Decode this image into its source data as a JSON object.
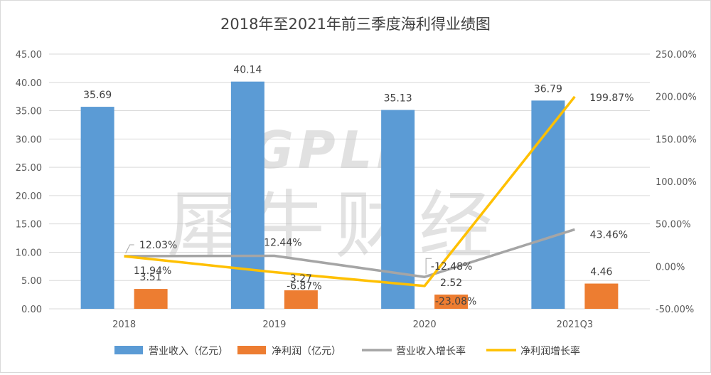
{
  "chart_data": {
    "type": "bar+line",
    "title": "2018年至2021年前三季度海利得业绩图",
    "categories": [
      "2018",
      "2019",
      "2020",
      "2021Q3"
    ],
    "y_left": {
      "ticks": [
        "0.00",
        "5.00",
        "10.00",
        "15.00",
        "20.00",
        "25.00",
        "30.00",
        "35.00",
        "40.00",
        "45.00"
      ],
      "range": [
        0,
        45
      ]
    },
    "y_right": {
      "ticks": [
        "-50.00%",
        "0.00%",
        "50.00%",
        "100.00%",
        "150.00%",
        "200.00%",
        "250.00%"
      ],
      "range": [
        -50,
        250
      ]
    },
    "grid": "horizontal",
    "legend_position": "bottom",
    "series": [
      {
        "name": "营业收入（亿元）",
        "kind": "bar",
        "axis": "left",
        "color": "#5b9bd5",
        "values": [
          35.69,
          40.14,
          35.13,
          36.79
        ],
        "labels": [
          "35.69",
          "40.14",
          "35.13",
          "36.79"
        ]
      },
      {
        "name": "净利润（亿元）",
        "kind": "bar",
        "axis": "left",
        "color": "#ed7d31",
        "values": [
          3.51,
          3.27,
          2.52,
          4.46
        ],
        "labels": [
          "3.51",
          "3.27",
          "2.52",
          "4.46"
        ]
      },
      {
        "name": "营业收入增长率",
        "kind": "line",
        "axis": "right",
        "color": "#a5a5a5",
        "values": [
          12.03,
          12.44,
          -12.48,
          43.46
        ],
        "labels": [
          "12.03%",
          "12.44%",
          "-12.48%",
          "43.46%"
        ]
      },
      {
        "name": "净利润增长率",
        "kind": "line",
        "axis": "right",
        "color": "#ffc000",
        "values": [
          11.94,
          -6.87,
          -23.08,
          199.87
        ],
        "labels": [
          "11.94%",
          "-6.87%",
          "-23.08%",
          "199.87%"
        ]
      }
    ]
  },
  "watermark": {
    "latin": "GPLP",
    "chinese": "犀牛财经"
  }
}
